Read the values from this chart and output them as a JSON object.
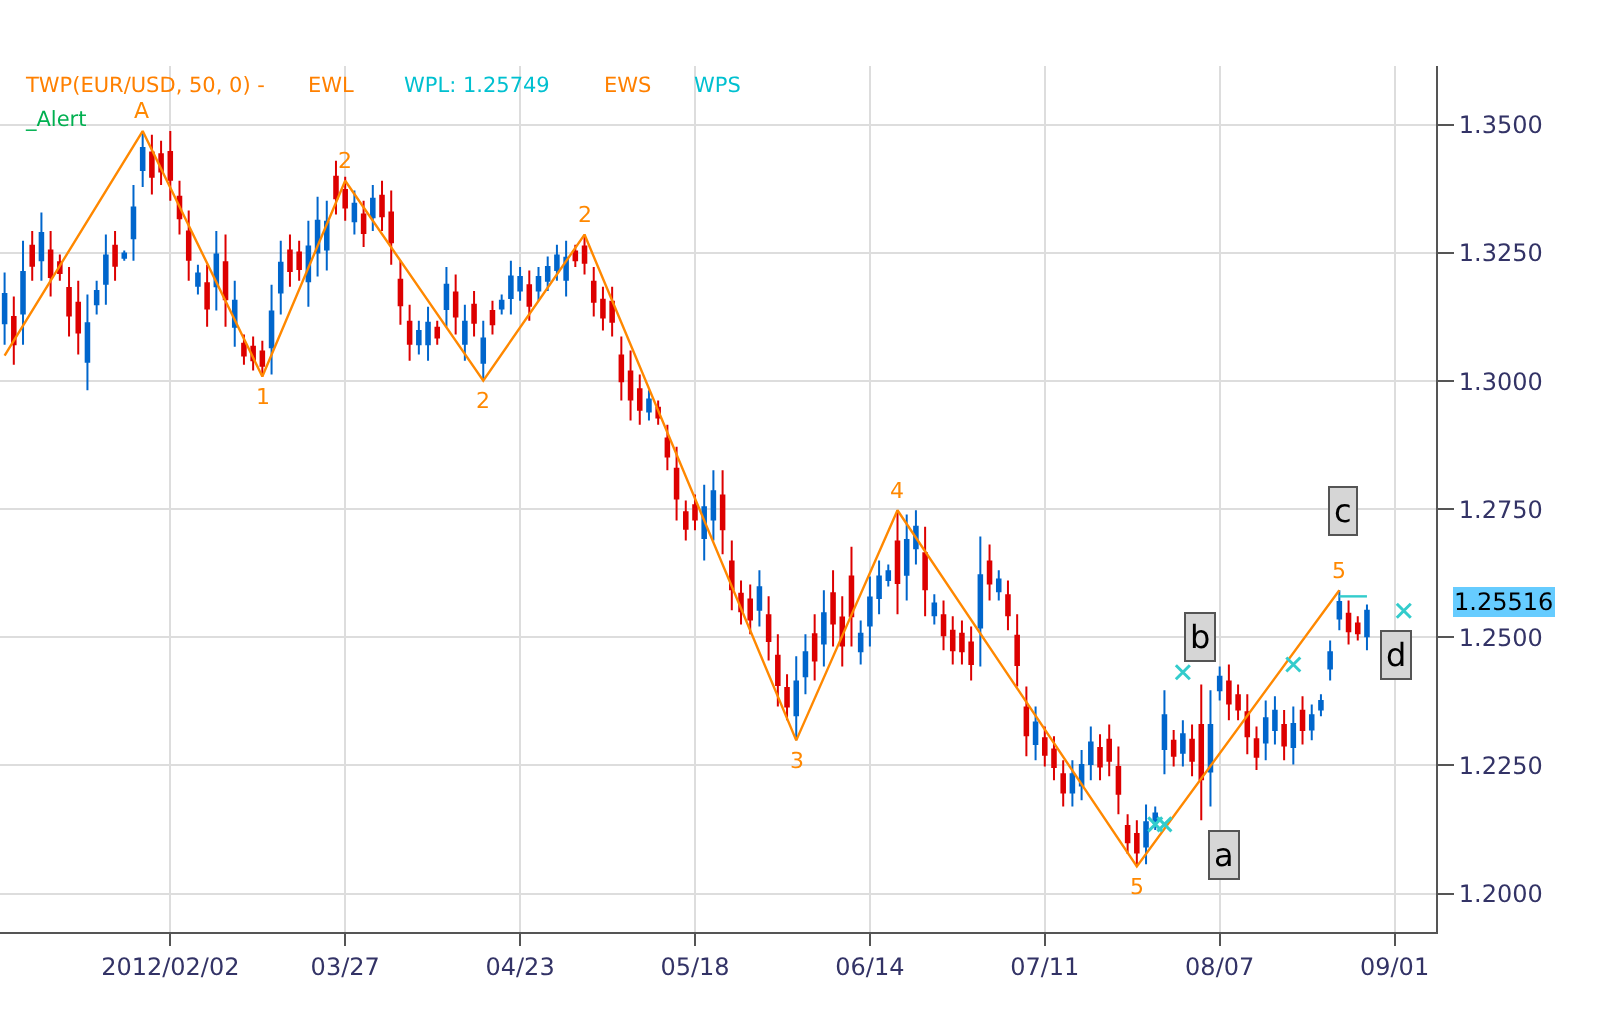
{
  "chart_data": {
    "type": "candlestick",
    "categories": [
      null,
      null,
      null,
      null,
      null,
      null,
      null,
      null,
      null,
      null,
      null,
      null,
      null,
      null,
      null,
      null,
      null,
      null,
      "2012/02/02",
      null,
      null,
      null,
      null,
      null,
      null,
      null,
      null,
      null,
      null,
      null,
      null,
      null,
      null,
      null,
      null,
      null,
      null,
      "03/27",
      null,
      null,
      null,
      null,
      null,
      null,
      null,
      null,
      null,
      null,
      null,
      null,
      null,
      null,
      null,
      null,
      null,
      null,
      "04/23",
      null,
      null,
      null,
      null,
      null,
      null,
      null,
      null,
      null,
      null,
      null,
      null,
      null,
      null,
      null,
      null,
      null,
      null,
      "05/18",
      null,
      null,
      null,
      null,
      null,
      null,
      null,
      null,
      null,
      null,
      null,
      null,
      null,
      null,
      null,
      null,
      null,
      null,
      "06/14",
      null,
      null,
      null,
      null,
      null,
      null,
      null,
      null,
      null,
      null,
      null,
      null,
      null,
      null,
      null,
      null,
      null,
      null,
      "07/11",
      null,
      null,
      null,
      null,
      null,
      null,
      null,
      null,
      null,
      null,
      null,
      null,
      null,
      null,
      null,
      null,
      null,
      null,
      "08/07",
      null,
      null,
      null,
      null,
      null,
      null,
      null,
      null,
      null,
      null,
      null,
      null,
      null,
      null,
      null,
      null,
      null,
      null,
      "09/01",
      null,
      null,
      null,
      null
    ],
    "ohlc": [
      [
        1.3113,
        1.3212,
        1.3071,
        1.317
      ],
      [
        1.3125,
        1.3165,
        1.3032,
        1.3072
      ],
      [
        1.3132,
        1.3274,
        1.3071,
        1.3213
      ],
      [
        1.3264,
        1.3293,
        1.3196,
        1.3225
      ],
      [
        1.3236,
        1.3329,
        1.3196,
        1.3289
      ],
      [
        1.3255,
        1.3293,
        1.3165,
        1.3203
      ],
      [
        1.3232,
        1.3247,
        1.3196,
        1.3211
      ],
      [
        1.3182,
        1.3223,
        1.3087,
        1.3128
      ],
      [
        1.3153,
        1.3196,
        1.3052,
        1.3095
      ],
      [
        1.3038,
        1.3169,
        1.2982,
        1.3113
      ],
      [
        1.315,
        1.3196,
        1.313,
        1.3176
      ],
      [
        1.319,
        1.3286,
        1.3149,
        1.3245
      ],
      [
        1.3264,
        1.3293,
        1.3196,
        1.3225
      ],
      [
        1.3241,
        1.3255,
        1.3235,
        1.3249
      ],
      [
        1.3279,
        1.3383,
        1.3235,
        1.3339
      ],
      [
        1.3412,
        1.3488,
        1.3379,
        1.3455
      ],
      [
        1.3446,
        1.3481,
        1.3364,
        1.3399
      ],
      [
        1.3443,
        1.3469,
        1.3383,
        1.3409
      ],
      [
        1.3447,
        1.3488,
        1.3352,
        1.3393
      ],
      [
        1.336,
        1.3391,
        1.3286,
        1.3318
      ],
      [
        1.3292,
        1.3333,
        1.3196,
        1.3237
      ],
      [
        1.3186,
        1.3227,
        1.3169,
        1.321
      ],
      [
        1.3191,
        1.3227,
        1.3106,
        1.3142
      ],
      [
        1.3185,
        1.3293,
        1.3138,
        1.3247
      ],
      [
        1.3232,
        1.3286,
        1.3106,
        1.316
      ],
      [
        1.3106,
        1.3196,
        1.3067,
        1.3157
      ],
      [
        1.3073,
        1.3091,
        1.3032,
        1.305
      ],
      [
        1.3067,
        1.3087,
        1.3021,
        1.3041
      ],
      [
        1.3058,
        1.3079,
        1.3009,
        1.303
      ],
      [
        1.3066,
        1.3188,
        1.3013,
        1.3136
      ],
      [
        1.3173,
        1.3274,
        1.313,
        1.3231
      ],
      [
        1.3255,
        1.3286,
        1.3184,
        1.3215
      ],
      [
        1.3251,
        1.3274,
        1.3196,
        1.3219
      ],
      [
        1.3195,
        1.3313,
        1.3145,
        1.3263
      ],
      [
        1.3251,
        1.336,
        1.3204,
        1.3313
      ],
      [
        1.3257,
        1.3352,
        1.3216,
        1.3311
      ],
      [
        1.3399,
        1.343,
        1.3325,
        1.3357
      ],
      [
        1.3373,
        1.3399,
        1.3313,
        1.3339
      ],
      [
        1.3312,
        1.3372,
        1.3286,
        1.3346
      ],
      [
        1.3325,
        1.3352,
        1.3262,
        1.3289
      ],
      [
        1.332,
        1.3383,
        1.3293,
        1.3356
      ],
      [
        1.3362,
        1.3391,
        1.3293,
        1.3322
      ],
      [
        1.3329,
        1.3372,
        1.3227,
        1.3271
      ],
      [
        1.3198,
        1.3235,
        1.311,
        1.3148
      ],
      [
        1.3116,
        1.3149,
        1.304,
        1.3073
      ],
      [
        1.3072,
        1.3118,
        1.3052,
        1.3098
      ],
      [
        1.3072,
        1.3145,
        1.304,
        1.3114
      ],
      [
        1.3104,
        1.3118,
        1.3071,
        1.3085
      ],
      [
        1.3141,
        1.3223,
        1.3106,
        1.3188
      ],
      [
        1.3173,
        1.3208,
        1.3091,
        1.3126
      ],
      [
        1.3073,
        1.3149,
        1.304,
        1.3116
      ],
      [
        1.3149,
        1.3176,
        1.3087,
        1.3114
      ],
      [
        1.3036,
        1.3118,
        1.3001,
        1.3083
      ],
      [
        1.3137,
        1.3157,
        1.3091,
        1.3111
      ],
      [
        1.3142,
        1.3169,
        1.313,
        1.3157
      ],
      [
        1.3162,
        1.3235,
        1.313,
        1.3204
      ],
      [
        1.3177,
        1.3223,
        1.3157,
        1.3203
      ],
      [
        1.3187,
        1.3216,
        1.3118,
        1.3147
      ],
      [
        1.3177,
        1.3223,
        1.3157,
        1.3203
      ],
      [
        1.3196,
        1.3243,
        1.3176,
        1.3223
      ],
      [
        1.3217,
        1.3266,
        1.3196,
        1.3245
      ],
      [
        1.3198,
        1.3274,
        1.3165,
        1.3241
      ],
      [
        1.3253,
        1.3266,
        1.3223,
        1.3236
      ],
      [
        1.3263,
        1.3286,
        1.3208,
        1.3231
      ],
      [
        1.3194,
        1.3223,
        1.3126,
        1.3155
      ],
      [
        1.3159,
        1.3184,
        1.3099,
        1.3124
      ],
      [
        1.3155,
        1.3184,
        1.3087,
        1.3116
      ],
      [
        1.305,
        1.3087,
        1.2962,
        1.3
      ],
      [
        1.3019,
        1.306,
        1.2923,
        1.2964
      ],
      [
        1.2984,
        1.3013,
        1.2915,
        1.2944
      ],
      [
        1.2941,
        1.2982,
        1.2923,
        1.2964
      ],
      [
        1.2948,
        1.2962,
        1.2915,
        1.2929
      ],
      [
        1.2888,
        1.2915,
        1.2826,
        1.2853
      ],
      [
        1.2829,
        1.2872,
        1.2728,
        1.2771
      ],
      [
        1.2744,
        1.2767,
        1.2689,
        1.2712
      ],
      [
        1.2758,
        1.2779,
        1.2709,
        1.273
      ],
      [
        1.2694,
        1.2798,
        1.265,
        1.2754
      ],
      [
        1.273,
        1.2826,
        1.2689,
        1.2785
      ],
      [
        1.2777,
        1.2826,
        1.2662,
        1.2711
      ],
      [
        1.2648,
        1.2689,
        1.2553,
        1.2594
      ],
      [
        1.2585,
        1.2611,
        1.2525,
        1.2551
      ],
      [
        1.2574,
        1.2603,
        1.2506,
        1.2535
      ],
      [
        1.2554,
        1.2631,
        1.2521,
        1.2598
      ],
      [
        1.2543,
        1.258,
        1.2455,
        1.2493
      ],
      [
        1.2464,
        1.2506,
        1.2365,
        1.2407
      ],
      [
        1.2401,
        1.2428,
        1.2338,
        1.2365
      ],
      [
        1.2348,
        1.2463,
        1.2299,
        1.2414
      ],
      [
        1.2424,
        1.2506,
        1.2389,
        1.2471
      ],
      [
        1.2506,
        1.2545,
        1.2416,
        1.2455
      ],
      [
        1.2488,
        1.2592,
        1.2443,
        1.2547
      ],
      [
        1.2586,
        1.2631,
        1.2482,
        1.2527
      ],
      [
        1.2539,
        1.258,
        1.2443,
        1.2484
      ],
      [
        1.2619,
        1.2677,
        1.2482,
        1.2541
      ],
      [
        1.2473,
        1.2533,
        1.2447,
        1.2507
      ],
      [
        1.2523,
        1.2619,
        1.2482,
        1.2578
      ],
      [
        1.2577,
        1.265,
        1.2545,
        1.2619
      ],
      [
        1.2612,
        1.2642,
        1.2599,
        1.2629
      ],
      [
        1.2687,
        1.2748,
        1.2545,
        1.2606
      ],
      [
        1.2622,
        1.274,
        1.2572,
        1.269
      ],
      [
        1.2674,
        1.2748,
        1.2642,
        1.2716
      ],
      [
        1.2664,
        1.2716,
        1.2541,
        1.2594
      ],
      [
        1.2543,
        1.2584,
        1.2525,
        1.2566
      ],
      [
        1.2543,
        1.2572,
        1.2475,
        1.2504
      ],
      [
        1.2513,
        1.2541,
        1.2447,
        1.2475
      ],
      [
        1.2507,
        1.2533,
        1.2447,
        1.2473
      ],
      [
        1.249,
        1.2521,
        1.2416,
        1.2448
      ],
      [
        1.2519,
        1.2697,
        1.2443,
        1.2621
      ],
      [
        1.2648,
        1.2681,
        1.2572,
        1.2605
      ],
      [
        1.259,
        1.2631,
        1.2572,
        1.2613
      ],
      [
        1.2582,
        1.2611,
        1.2514,
        1.2543
      ],
      [
        1.2503,
        1.2545,
        1.2404,
        1.2446
      ],
      [
        1.2363,
        1.2404,
        1.2268,
        1.2309
      ],
      [
        1.2292,
        1.2365,
        1.226,
        1.2334
      ],
      [
        1.2303,
        1.2326,
        1.2248,
        1.2271
      ],
      [
        1.2281,
        1.2307,
        1.2221,
        1.2247
      ],
      [
        1.2233,
        1.226,
        1.217,
        1.2197
      ],
      [
        1.2197,
        1.226,
        1.217,
        1.2233
      ],
      [
        1.2211,
        1.228,
        1.2182,
        1.2251
      ],
      [
        1.2253,
        1.2326,
        1.2221,
        1.2295
      ],
      [
        1.2284,
        1.2311,
        1.2221,
        1.2248
      ],
      [
        1.23,
        1.233,
        1.2229,
        1.2259
      ],
      [
        1.2247,
        1.2287,
        1.2155,
        1.2195
      ],
      [
        1.2132,
        1.2155,
        1.2077,
        1.21
      ],
      [
        1.2116,
        1.2143,
        1.2053,
        1.208
      ],
      [
        1.2092,
        1.2174,
        1.2057,
        1.2139
      ],
      [
        1.2138,
        1.217,
        1.2124,
        1.2156
      ],
      [
        1.2282,
        1.2397,
        1.2233,
        1.2348
      ],
      [
        1.2298,
        1.2319,
        1.2248,
        1.2269
      ],
      [
        1.2275,
        1.2338,
        1.2248,
        1.2311
      ],
      [
        1.23,
        1.233,
        1.2229,
        1.2259
      ],
      [
        1.2329,
        1.2408,
        1.2143,
        1.2223
      ],
      [
        1.2238,
        1.2397,
        1.217,
        1.2329
      ],
      [
        1.2397,
        1.2443,
        1.2377,
        1.2423
      ],
      [
        1.2414,
        1.2447,
        1.2338,
        1.2371
      ],
      [
        1.2387,
        1.2408,
        1.2338,
        1.2359
      ],
      [
        1.2354,
        1.2389,
        1.2272,
        1.2307
      ],
      [
        1.2301,
        1.2326,
        1.2241,
        1.2267
      ],
      [
        1.2295,
        1.2377,
        1.226,
        1.2342
      ],
      [
        1.2319,
        1.2385,
        1.2291,
        1.2357
      ],
      [
        1.2329,
        1.2358,
        1.226,
        1.2289
      ],
      [
        1.2286,
        1.2365,
        1.2252,
        1.2331
      ],
      [
        1.2357,
        1.2385,
        1.2291,
        1.2319
      ],
      [
        1.232,
        1.2369,
        1.2299,
        1.2348
      ],
      [
        1.2359,
        1.2389,
        1.2346,
        1.2376
      ],
      [
        1.2439,
        1.2494,
        1.2416,
        1.2471
      ],
      [
        1.2537,
        1.2592,
        1.2514,
        1.2569
      ],
      [
        1.2546,
        1.2572,
        1.2486,
        1.2512
      ],
      [
        1.2527,
        1.2541,
        1.2494,
        1.2508
      ],
      [
        1.2502,
        1.2564,
        1.2475,
        1.2552
      ],
      null,
      null,
      null,
      null,
      null,
      null,
      null
    ],
    "colors": [
      "#0066cc",
      "#dd0000",
      "#0066cc",
      "#dd0000",
      "#0066cc",
      "#dd0000",
      "#dd0000",
      "#dd0000",
      "#dd0000",
      "#0066cc",
      "#0066cc",
      "#0066cc",
      "#dd0000",
      "#0066cc",
      "#0066cc",
      "#0066cc",
      "#dd0000",
      "#dd0000",
      "#dd0000",
      "#dd0000",
      "#dd0000",
      "#0066cc",
      "#dd0000",
      "#0066cc",
      "#dd0000",
      "#0066cc",
      "#dd0000",
      "#dd0000",
      "#dd0000",
      "#0066cc",
      "#0066cc",
      "#dd0000",
      "#dd0000",
      "#0066cc",
      "#0066cc",
      "#0066cc",
      "#dd0000",
      "#dd0000",
      "#0066cc",
      "#dd0000",
      "#0066cc",
      "#dd0000",
      "#dd0000",
      "#dd0000",
      "#dd0000",
      "#0066cc",
      "#0066cc",
      "#dd0000",
      "#0066cc",
      "#dd0000",
      "#0066cc",
      "#dd0000",
      "#0066cc",
      "#dd0000",
      "#0066cc",
      "#0066cc",
      "#0066cc",
      "#dd0000",
      "#0066cc",
      "#0066cc",
      "#0066cc",
      "#0066cc",
      "#dd0000",
      "#dd0000",
      "#dd0000",
      "#dd0000",
      "#dd0000",
      "#dd0000",
      "#dd0000",
      "#dd0000",
      "#0066cc",
      "#dd0000",
      "#dd0000",
      "#dd0000",
      "#dd0000",
      "#dd0000",
      "#0066cc",
      "#0066cc",
      "#dd0000",
      "#dd0000",
      "#dd0000",
      "#dd0000",
      "#0066cc",
      "#dd0000",
      "#dd0000",
      "#dd0000",
      "#0066cc",
      "#0066cc",
      "#dd0000",
      "#0066cc",
      "#dd0000",
      "#dd0000",
      "#dd0000",
      "#0066cc",
      "#0066cc",
      "#0066cc",
      "#0066cc",
      "#dd0000",
      "#0066cc",
      "#0066cc",
      "#dd0000",
      "#0066cc",
      "#dd0000",
      "#dd0000",
      "#dd0000",
      "#dd0000",
      "#0066cc",
      "#dd0000",
      "#0066cc",
      "#dd0000",
      "#dd0000",
      "#dd0000",
      "#0066cc",
      "#dd0000",
      "#dd0000",
      "#dd0000",
      "#0066cc",
      "#0066cc",
      "#0066cc",
      "#dd0000",
      "#dd0000",
      "#dd0000",
      "#dd0000",
      "#dd0000",
      "#0066cc",
      "#0066cc",
      "#0066cc",
      "#dd0000",
      "#0066cc",
      "#dd0000",
      "#dd0000",
      "#0066cc",
      "#0066cc",
      "#dd0000",
      "#dd0000",
      "#dd0000",
      "#dd0000",
      "#0066cc",
      "#0066cc",
      "#dd0000",
      "#0066cc",
      "#dd0000",
      "#0066cc",
      "#0066cc",
      "#0066cc",
      "#0066cc",
      "#dd0000",
      "#dd0000",
      "#0066cc",
      null,
      null,
      null,
      null,
      null,
      null,
      null
    ],
    "series": [
      {
        "type": "line",
        "color": "#ff8800",
        "values": [
          1.305,
          null,
          null,
          null,
          null,
          null,
          null,
          null,
          null,
          null,
          null,
          null,
          null,
          null,
          null,
          1.3488,
          null,
          null,
          null,
          null,
          null,
          null,
          null,
          null,
          null,
          null,
          null,
          null,
          1.3009,
          null,
          null,
          null,
          null,
          null,
          null,
          null,
          null,
          1.3391,
          null,
          null,
          null,
          null,
          null,
          null,
          null,
          null,
          null,
          null,
          null,
          null,
          null,
          null,
          1.3001,
          null,
          null,
          null,
          null,
          null,
          null,
          null,
          null,
          null,
          null,
          1.3286,
          null,
          null,
          null,
          null,
          null,
          null,
          null,
          null,
          null,
          null,
          null,
          null,
          null,
          null,
          null,
          null,
          null,
          null,
          null,
          null,
          null,
          null,
          1.2299,
          null,
          null,
          null,
          null,
          null,
          null,
          null,
          null,
          null,
          null,
          1.2748,
          null,
          null,
          null,
          null,
          null,
          null,
          null,
          null,
          null,
          null,
          null,
          null,
          null,
          null,
          null,
          null,
          null,
          null,
          null,
          null,
          null,
          null,
          null,
          null,
          null,
          1.2053,
          null,
          null,
          null,
          null,
          null,
          null,
          null,
          null,
          null,
          null,
          null,
          null,
          null,
          null,
          null,
          null,
          null,
          null,
          null,
          null,
          null,
          1.2592,
          null,
          null,
          null,
          null,
          null,
          null,
          null,
          null,
          null,
          null
        ]
      },
      {
        "type": "scatter",
        "marker": "cross",
        "color": "#33cccc",
        "values": [
          null,
          null,
          null,
          null,
          null,
          null,
          null,
          null,
          null,
          null,
          null,
          null,
          null,
          null,
          null,
          null,
          null,
          null,
          null,
          null,
          null,
          null,
          null,
          null,
          null,
          null,
          null,
          null,
          null,
          null,
          null,
          null,
          null,
          null,
          null,
          null,
          null,
          null,
          null,
          null,
          null,
          null,
          null,
          null,
          null,
          null,
          null,
          null,
          null,
          null,
          null,
          null,
          null,
          null,
          null,
          null,
          null,
          null,
          null,
          null,
          null,
          null,
          null,
          null,
          null,
          null,
          null,
          null,
          null,
          null,
          null,
          null,
          null,
          null,
          null,
          null,
          null,
          null,
          null,
          null,
          null,
          null,
          null,
          null,
          null,
          null,
          null,
          null,
          null,
          null,
          null,
          null,
          null,
          null,
          null,
          null,
          null,
          null,
          null,
          null,
          null,
          null,
          null,
          null,
          null,
          null,
          null,
          null,
          null,
          null,
          null,
          null,
          null,
          null,
          null,
          null,
          null,
          null,
          null,
          null,
          null,
          null,
          null,
          null,
          null,
          1.2135,
          1.2135,
          null,
          1.2432,
          null,
          null,
          null,
          null,
          null,
          null,
          null,
          null,
          null,
          null,
          null,
          1.2447,
          null,
          null,
          null,
          null,
          null,
          null,
          null,
          null,
          null,
          null,
          null,
          1.2552,
          null,
          null,
          null
        ]
      },
      {
        "type": "line",
        "color": "#33cccc",
        "values": [
          null,
          null,
          null,
          null,
          null,
          null,
          null,
          null,
          null,
          null,
          null,
          null,
          null,
          null,
          null,
          null,
          null,
          null,
          null,
          null,
          null,
          null,
          null,
          null,
          null,
          null,
          null,
          null,
          null,
          null,
          null,
          null,
          null,
          null,
          null,
          null,
          null,
          null,
          null,
          null,
          null,
          null,
          null,
          null,
          null,
          null,
          null,
          null,
          null,
          null,
          null,
          null,
          null,
          null,
          null,
          null,
          null,
          null,
          null,
          null,
          null,
          null,
          null,
          null,
          null,
          null,
          null,
          null,
          null,
          null,
          null,
          null,
          null,
          null,
          null,
          null,
          null,
          null,
          null,
          null,
          null,
          null,
          null,
          null,
          null,
          null,
          null,
          null,
          null,
          null,
          null,
          null,
          null,
          null,
          null,
          null,
          null,
          null,
          null,
          null,
          null,
          null,
          null,
          null,
          null,
          null,
          null,
          null,
          null,
          null,
          null,
          null,
          null,
          null,
          null,
          null,
          null,
          null,
          null,
          null,
          null,
          null,
          null,
          null,
          null,
          null,
          null,
          null,
          null,
          null,
          null,
          null,
          null,
          null,
          null,
          null,
          null,
          null,
          null,
          null,
          null,
          null,
          null,
          null,
          null,
          1.258,
          1.258,
          1.258,
          1.258,
          null,
          null,
          null,
          null,
          null,
          null,
          null
        ]
      }
    ],
    "ylim": [
      1.1925,
      1.3615
    ],
    "yticks": [
      {
        "value": 1.2,
        "label": "1.2000"
      },
      {
        "value": 1.225,
        "label": "1.2250"
      },
      {
        "value": 1.25,
        "label": "1.2500"
      },
      {
        "value": 1.275,
        "label": "1.2750"
      },
      {
        "value": 1.3,
        "label": "1.3000"
      },
      {
        "value": 1.325,
        "label": "1.3250"
      },
      {
        "value": 1.35,
        "label": "1.3500"
      }
    ],
    "grid": true,
    "annotations": [
      "TWP(EUR/USD, 50, 0) -",
      "EWL",
      "WPL: 1.25749",
      "EWS",
      "WPS",
      "_Alert",
      "A",
      "1",
      "2",
      "2",
      "2",
      "3",
      "4",
      "5",
      "5",
      "1.25516",
      "a",
      "b",
      "c",
      "d"
    ]
  }
}
